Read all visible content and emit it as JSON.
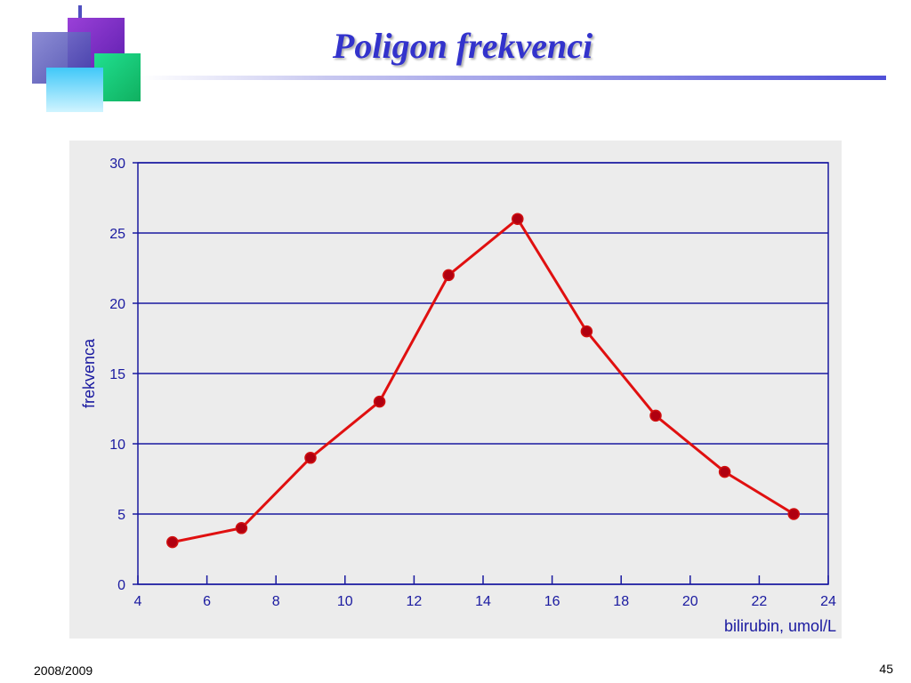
{
  "slide": {
    "title": "Poligon frekvenci",
    "footer_left": "2008/2009",
    "page_number": "45"
  },
  "colors": {
    "title": "#3333cc",
    "axis": "#1a1aa0",
    "gridline": "#1a1aa0",
    "plot_background": "#ececec",
    "series_line": "#e01010",
    "marker_fill": "#b00010",
    "marker_stroke": "#d01010"
  },
  "chart_data": {
    "type": "line",
    "title": "",
    "xlabel": "bilirubin, umol/L",
    "ylabel": "frekvenca",
    "xlim": [
      4,
      24
    ],
    "ylim": [
      0,
      30
    ],
    "x_ticks": [
      4,
      6,
      8,
      10,
      12,
      14,
      16,
      18,
      20,
      22,
      24
    ],
    "y_ticks": [
      0,
      5,
      10,
      15,
      20,
      25,
      30
    ],
    "grid": "horizontal",
    "legend": "none",
    "series": [
      {
        "x": [
          5,
          7,
          9,
          11,
          13,
          15,
          17,
          19,
          21,
          23
        ],
        "y": [
          3,
          4,
          9,
          13,
          22,
          26,
          18,
          12,
          8,
          5
        ]
      }
    ]
  }
}
